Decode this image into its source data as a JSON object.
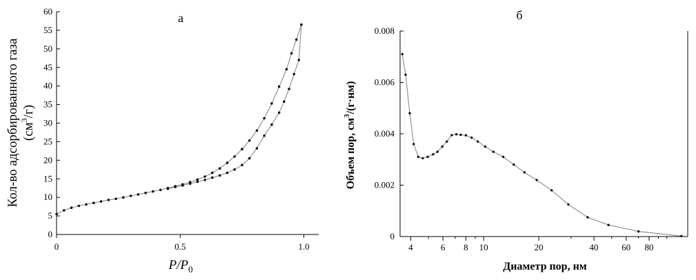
{
  "chart_data": [
    {
      "panel_label": "а",
      "type": "line",
      "xlabel": "P/P",
      "xlabel_sub": "0",
      "ylabel_line1": "Кол-во адсорбированного газа",
      "ylabel_line2_pre": "(см",
      "ylabel_line2_sup": "3",
      "ylabel_line2_post": "/г)",
      "xlim": [
        0,
        1.06
      ],
      "ylim": [
        0,
        60
      ],
      "x_ticks": [
        0,
        0.5,
        1.0
      ],
      "x_tick_labels": [
        "0",
        "0.5",
        "1.0"
      ],
      "y_ticks": [
        0,
        5,
        10,
        15,
        20,
        25,
        30,
        35,
        40,
        45,
        50,
        55,
        60
      ],
      "y_tick_labels": [
        "0",
        "5",
        "10",
        "15",
        "20",
        "25",
        "30",
        "35",
        "40",
        "45",
        "50",
        "55",
        "60"
      ],
      "series": [
        {
          "x": [
            0.0,
            0.03,
            0.06,
            0.09,
            0.12,
            0.15,
            0.18,
            0.21,
            0.24,
            0.27,
            0.3,
            0.33,
            0.36,
            0.39,
            0.42,
            0.45,
            0.48,
            0.51,
            0.54,
            0.57,
            0.6,
            0.63,
            0.66,
            0.69,
            0.72,
            0.75,
            0.78,
            0.81,
            0.84,
            0.87,
            0.9,
            0.93,
            0.95,
            0.97,
            0.99
          ],
          "y": [
            5.5,
            6.5,
            7.2,
            7.7,
            8.1,
            8.5,
            8.9,
            9.3,
            9.6,
            10.0,
            10.4,
            10.8,
            11.2,
            11.6,
            12.0,
            12.5,
            13.0,
            13.5,
            14.1,
            14.8,
            15.6,
            16.6,
            17.8,
            19.3,
            21.0,
            23.0,
            25.3,
            28.0,
            31.3,
            35.3,
            39.8,
            44.5,
            48.8,
            52.5,
            56.5
          ]
        },
        {
          "x": [
            0.45,
            0.48,
            0.51,
            0.54,
            0.57,
            0.6,
            0.63,
            0.66,
            0.69,
            0.72,
            0.75,
            0.78,
            0.81,
            0.84,
            0.87,
            0.9,
            0.92,
            0.94,
            0.96,
            0.98,
            0.99
          ],
          "y": [
            12.3,
            12.8,
            13.2,
            13.7,
            14.2,
            14.7,
            15.3,
            15.9,
            16.6,
            17.5,
            18.7,
            20.5,
            23.2,
            26.6,
            29.6,
            32.8,
            35.8,
            39.2,
            43.2,
            47.0,
            56.5
          ]
        }
      ]
    },
    {
      "panel_label": "б",
      "type": "line",
      "xlabel": "Диаметр пор,  нм",
      "ylabel_pre": "Объем пор,  см",
      "ylabel_sup": "3",
      "ylabel_post": "/(г·нм)",
      "x_scale": "log",
      "xlim": [
        3.5,
        130
      ],
      "ylim": [
        0,
        0.008
      ],
      "x_ticks": [
        4,
        6,
        8,
        10,
        20,
        40,
        60,
        80
      ],
      "x_tick_labels": [
        "4",
        "6",
        "8",
        "10",
        "20",
        "40",
        "60",
        "80"
      ],
      "y_ticks": [
        0,
        0.002,
        0.004,
        0.006,
        0.008
      ],
      "y_tick_labels": [
        "0",
        "0.002",
        "0.004",
        "0.006",
        "0.008"
      ],
      "series": [
        {
          "x": [
            3.6,
            3.75,
            3.95,
            4.15,
            4.4,
            4.65,
            4.95,
            5.3,
            5.6,
            5.95,
            6.3,
            6.7,
            7.1,
            7.5,
            8.0,
            8.6,
            9.3,
            10.2,
            11.3,
            12.8,
            14.6,
            16.7,
            19.5,
            23.5,
            29.0,
            37.0,
            48.0,
            70.0,
            120.0
          ],
          "y": [
            0.0071,
            0.0063,
            0.0048,
            0.0036,
            0.0031,
            0.00305,
            0.0031,
            0.0032,
            0.0033,
            0.0035,
            0.0037,
            0.00395,
            0.00398,
            0.00396,
            0.00394,
            0.00385,
            0.0037,
            0.0035,
            0.0033,
            0.0031,
            0.0028,
            0.0025,
            0.0022,
            0.0018,
            0.00125,
            0.00075,
            0.00045,
            0.0002,
            2e-05
          ]
        }
      ]
    }
  ]
}
